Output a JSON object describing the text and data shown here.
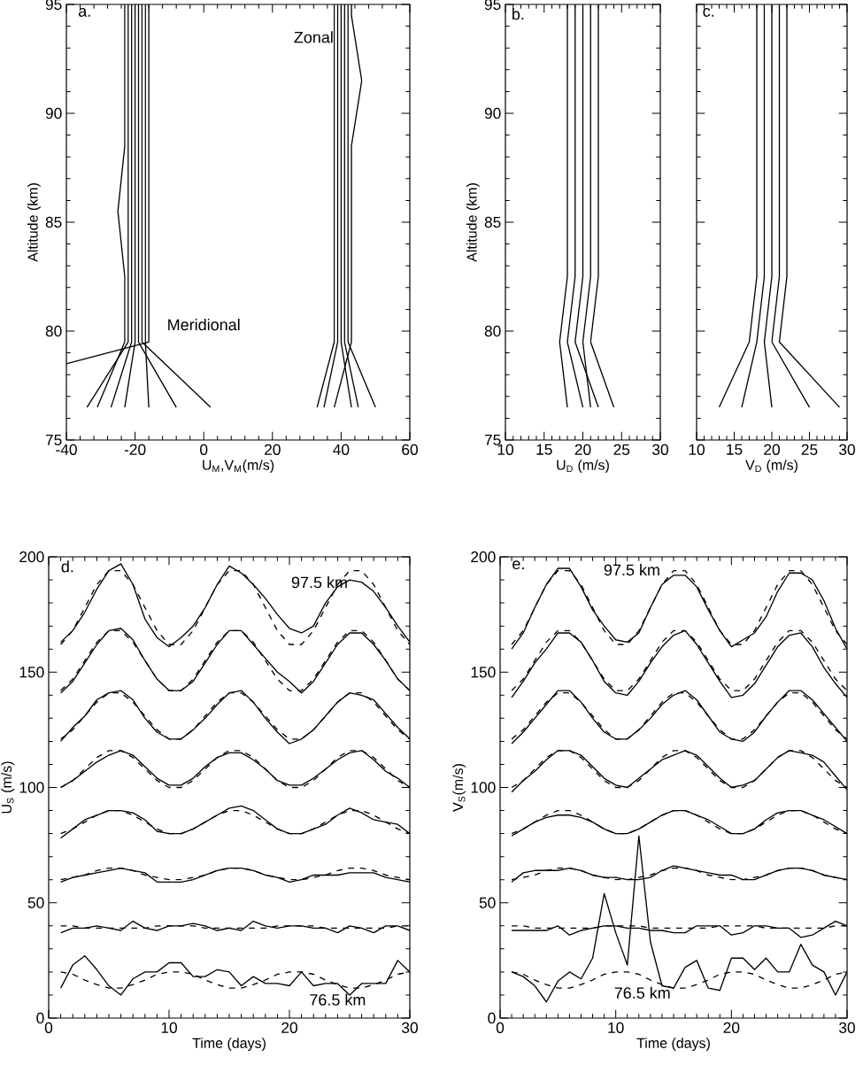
{
  "chart_data": [
    {
      "type": "line",
      "xlabel": "U$_{M}$,V$_{M}$(m/s)",
      "ylabel": "Altitude (km)",
      "xlim": [
        -40,
        60
      ],
      "ylim": [
        75,
        95
      ],
      "xticks": [
        -40,
        -20,
        0,
        20,
        40,
        60
      ],
      "yticks": [
        75,
        80,
        85,
        90,
        95
      ],
      "annotations": [
        "a.",
        "Zonal",
        "Meridional"
      ],
      "series": [
        {
          "color": "#000000",
          "x": [
            -34,
            -22,
            -22,
            -22,
            -22,
            -22,
            -22,
            -22
          ],
          "values": [
            76.5,
            79.5,
            82.5,
            85.5,
            88.5,
            91.5,
            94.5,
            95
          ]
        },
        {
          "color": "#000000",
          "x": [
            -27,
            -21,
            -21,
            -21,
            -21,
            -21,
            -21,
            -21
          ],
          "values": [
            76.5,
            79.5,
            82.5,
            85.5,
            88.5,
            91.5,
            94.5,
            95
          ]
        },
        {
          "color": "#000000",
          "x": [
            -23,
            -20,
            -20,
            -20,
            -20,
            -20,
            -20,
            -20
          ],
          "values": [
            76.5,
            79.5,
            82.5,
            85.5,
            88.5,
            91.5,
            94.5,
            95
          ]
        },
        {
          "color": "#000000",
          "x": [
            -8,
            -19,
            -19,
            -19,
            -19,
            -19,
            -19,
            -19
          ],
          "values": [
            76.5,
            79.5,
            82.5,
            85.5,
            88.5,
            91.5,
            94.5,
            95
          ]
        },
        {
          "color": "#000000",
          "x": [
            2,
            -18,
            -18,
            -18,
            -18,
            -18,
            -18,
            -18
          ],
          "values": [
            76.5,
            79.5,
            82.5,
            85.5,
            88.5,
            91.5,
            94.5,
            95
          ]
        },
        {
          "color": "#000000",
          "x": [
            -16,
            -17,
            -17,
            -17,
            -17,
            -17,
            -17,
            -17
          ],
          "values": [
            76.5,
            79.5,
            82.5,
            85.5,
            88.5,
            91.5,
            94.5,
            95
          ]
        },
        {
          "color": "#000000",
          "x": [
            -31,
            -23,
            -23,
            -25,
            -23,
            -23,
            -23,
            -23
          ],
          "values": [
            76.5,
            79.5,
            82.5,
            85.5,
            88.5,
            91.5,
            94.5,
            95
          ]
        },
        {
          "color": "#000000",
          "x": [
            -40,
            -16,
            -16,
            -16,
            -16,
            -16,
            -16,
            -16
          ],
          "values": [
            78.5,
            79.5,
            82.5,
            85.5,
            88.5,
            91.5,
            94.5,
            95
          ]
        },
        {
          "color": "#000000",
          "x": [
            33,
            38,
            38,
            38,
            38,
            38,
            38,
            38
          ],
          "values": [
            76.5,
            79.5,
            82.5,
            85.5,
            88.5,
            91.5,
            94.5,
            95
          ]
        },
        {
          "color": "#000000",
          "x": [
            35,
            39,
            39,
            39,
            39,
            39,
            39,
            39
          ],
          "values": [
            76.5,
            79.5,
            82.5,
            85.5,
            88.5,
            91.5,
            94.5,
            95
          ]
        },
        {
          "color": "#000000",
          "x": [
            43,
            40,
            40,
            40,
            40,
            40,
            40,
            40
          ],
          "values": [
            76.5,
            79.5,
            82.5,
            85.5,
            88.5,
            91.5,
            94.5,
            95
          ]
        },
        {
          "color": "#000000",
          "x": [
            45,
            41,
            41,
            41,
            41,
            41,
            41,
            41
          ],
          "values": [
            76.5,
            79.5,
            82.5,
            85.5,
            88.5,
            91.5,
            94.5,
            95
          ]
        },
        {
          "color": "#000000",
          "x": [
            50,
            42,
            42,
            42,
            42,
            42,
            42,
            42
          ],
          "values": [
            76.5,
            79.5,
            82.5,
            85.5,
            88.5,
            91.5,
            94.5,
            95
          ]
        },
        {
          "color": "#000000",
          "x": [
            38,
            43,
            43,
            43,
            43,
            46,
            43,
            43
          ],
          "values": [
            76.5,
            79.5,
            82.5,
            85.5,
            88.5,
            91.5,
            94.5,
            95
          ]
        }
      ]
    },
    {
      "type": "line",
      "xlabel": "U$_{D}$ (m/s)",
      "ylabel": "Altitude (km)",
      "xlim": [
        10,
        30
      ],
      "ylim": [
        75,
        95
      ],
      "xticks": [
        10,
        15,
        20,
        25,
        30
      ],
      "yticks": [
        75,
        80,
        85,
        90,
        95
      ],
      "annotations": [
        "b."
      ],
      "series": [
        {
          "color": "#000000",
          "x": [
            18,
            17,
            18,
            18,
            18,
            18,
            18,
            18
          ],
          "values": [
            76.5,
            79.5,
            82.5,
            85.5,
            88.5,
            91.5,
            94.5,
            95
          ]
        },
        {
          "color": "#000000",
          "x": [
            20,
            18,
            19,
            19,
            19,
            19,
            19,
            19
          ],
          "values": [
            76.5,
            79.5,
            82.5,
            85.5,
            88.5,
            91.5,
            94.5,
            95
          ]
        },
        {
          "color": "#000000",
          "x": [
            22,
            19,
            20,
            20,
            20,
            20,
            20,
            20
          ],
          "values": [
            76.5,
            79.5,
            82.5,
            85.5,
            88.5,
            91.5,
            94.5,
            95
          ]
        },
        {
          "color": "#000000",
          "x": [
            21,
            20,
            21,
            21,
            21,
            21,
            21,
            21
          ],
          "values": [
            76.5,
            79.5,
            82.5,
            85.5,
            88.5,
            91.5,
            94.5,
            95
          ]
        },
        {
          "color": "#000000",
          "x": [
            24,
            21,
            22,
            22,
            22,
            22,
            22,
            22
          ],
          "values": [
            76.5,
            79.5,
            82.5,
            85.5,
            88.5,
            91.5,
            94.5,
            95
          ]
        }
      ]
    },
    {
      "type": "line",
      "xlabel": "V$_{D}$ (m/s)",
      "xlim": [
        10,
        30
      ],
      "ylim": [
        75,
        95
      ],
      "xticks": [
        10,
        15,
        20,
        25,
        30
      ],
      "yticks": [
        75,
        80,
        85,
        90,
        95
      ],
      "tick_labels": "x",
      "annotations": [
        "c."
      ],
      "series": [
        {
          "color": "#000000",
          "x": [
            13,
            17,
            18,
            18,
            18,
            18,
            18,
            18
          ],
          "values": [
            76.5,
            79.5,
            82.5,
            85.5,
            88.5,
            91.5,
            94.5,
            95
          ]
        },
        {
          "color": "#000000",
          "x": [
            16,
            18,
            19,
            19,
            19,
            19,
            19,
            19
          ],
          "values": [
            76.5,
            79.5,
            82.5,
            85.5,
            88.5,
            91.5,
            94.5,
            95
          ]
        },
        {
          "color": "#000000",
          "x": [
            20,
            19,
            20,
            20,
            20,
            20,
            20,
            20
          ],
          "values": [
            76.5,
            79.5,
            82.5,
            85.5,
            88.5,
            91.5,
            94.5,
            95
          ]
        },
        {
          "color": "#000000",
          "x": [
            25,
            20,
            21,
            21,
            21,
            21,
            21,
            21
          ],
          "values": [
            76.5,
            79.5,
            82.5,
            85.5,
            88.5,
            91.5,
            94.5,
            95
          ]
        },
        {
          "color": "#000000",
          "x": [
            29,
            21,
            22,
            22,
            22,
            22,
            22,
            22
          ],
          "values": [
            76.5,
            79.5,
            82.5,
            85.5,
            88.5,
            91.5,
            94.5,
            95
          ]
        }
      ]
    },
    {
      "type": "line",
      "xlabel": "Time (days)",
      "ylabel": "U$_{S}$ (m/s)",
      "xlim": [
        0,
        30
      ],
      "ylim": [
        0,
        200
      ],
      "xticks": [
        0,
        10,
        20,
        30
      ],
      "yticks": [
        0,
        50,
        100,
        150,
        200
      ],
      "x": [
        1,
        2,
        3,
        4,
        5,
        6,
        7,
        8,
        9,
        10,
        11,
        12,
        13,
        14,
        15,
        16,
        17,
        18,
        19,
        20,
        21,
        22,
        23,
        24,
        25,
        26,
        27,
        28,
        29,
        30
      ],
      "annotations": [
        "d.",
        "97.5 km",
        "76.5 km"
      ],
      "series": [
        {
          "color": "#000000",
          "line_style": "solid",
          "values": [
            163,
            168,
            176,
            186,
            194,
            197,
            188,
            173,
            165,
            161,
            165,
            170,
            178,
            188,
            196,
            193,
            188,
            182,
            175,
            169,
            167,
            170,
            180,
            187,
            190,
            189,
            185,
            178,
            170,
            163
          ]
        },
        {
          "color": "#000000",
          "line_style": "solid",
          "values": [
            141,
            146,
            154,
            162,
            168,
            169,
            164,
            155,
            147,
            142,
            142,
            146,
            154,
            162,
            168,
            168,
            162,
            156,
            150,
            146,
            141,
            146,
            154,
            162,
            167,
            167,
            162,
            155,
            147,
            142
          ]
        },
        {
          "color": "#000000",
          "line_style": "solid",
          "values": [
            120,
            126,
            131,
            138,
            141,
            142,
            138,
            130,
            124,
            121,
            121,
            125,
            130,
            136,
            141,
            142,
            137,
            130,
            124,
            119,
            121,
            125,
            131,
            137,
            141,
            140,
            138,
            132,
            126,
            121
          ]
        },
        {
          "color": "#000000",
          "line_style": "solid",
          "values": [
            100,
            103,
            107,
            111,
            114,
            116,
            114,
            109,
            104,
            101,
            101,
            104,
            109,
            113,
            115,
            115,
            112,
            108,
            103,
            101,
            101,
            104,
            108,
            112,
            115,
            116,
            112,
            107,
            104,
            100
          ]
        },
        {
          "color": "#000000",
          "line_style": "solid",
          "values": [
            78,
            82,
            86,
            88,
            90,
            90,
            89,
            86,
            81,
            80,
            80,
            82,
            85,
            88,
            91,
            92,
            90,
            86,
            82,
            80,
            80,
            82,
            84,
            88,
            91,
            89,
            86,
            85,
            84,
            80
          ]
        },
        {
          "color": "#000000",
          "line_style": "solid",
          "values": [
            59,
            61,
            62,
            63,
            64,
            65,
            64,
            63,
            59,
            59,
            59,
            60,
            62,
            64,
            65,
            65,
            64,
            62,
            61,
            59,
            60,
            62,
            62,
            62,
            63,
            63,
            63,
            61,
            60,
            59
          ]
        },
        {
          "color": "#000000",
          "line_style": "solid",
          "values": [
            37,
            39,
            39,
            40,
            39,
            38,
            42,
            39,
            38,
            40,
            40,
            41,
            40,
            38,
            39,
            38,
            42,
            40,
            39,
            40,
            40,
            39,
            39,
            37,
            40,
            39,
            37,
            40,
            40,
            38
          ]
        },
        {
          "color": "#000000",
          "line_style": "solid",
          "values": [
            13,
            23,
            27,
            21,
            14,
            10,
            17,
            20,
            20,
            24,
            24,
            18,
            18,
            21,
            20,
            14,
            18,
            15,
            15,
            14,
            20,
            14,
            15,
            15,
            10,
            15,
            15,
            15,
            25,
            20
          ]
        },
        {
          "color": "#000000",
          "line_style": "dashed",
          "values": [
            162,
            168,
            178,
            188,
            194,
            194,
            188,
            178,
            168,
            162,
            162,
            168,
            178,
            188,
            194,
            194,
            188,
            178,
            168,
            162,
            162,
            168,
            178,
            188,
            194,
            194,
            188,
            178,
            168,
            162
          ]
        },
        {
          "color": "#000000",
          "line_style": "dashed",
          "values": [
            142,
            147,
            155,
            163,
            168,
            168,
            163,
            155,
            147,
            142,
            142,
            147,
            155,
            163,
            168,
            168,
            163,
            155,
            147,
            142,
            142,
            147,
            155,
            163,
            168,
            168,
            163,
            155,
            147,
            142
          ]
        },
        {
          "color": "#000000",
          "line_style": "dashed",
          "values": [
            121,
            125,
            131,
            137,
            141,
            141,
            137,
            131,
            125,
            121,
            121,
            125,
            131,
            137,
            141,
            141,
            137,
            131,
            125,
            121,
            121,
            125,
            131,
            137,
            141,
            141,
            137,
            131,
            125,
            121
          ]
        },
        {
          "color": "#000000",
          "line_style": "dashed",
          "values": [
            100,
            103,
            108,
            113,
            116,
            116,
            113,
            108,
            103,
            100,
            100,
            103,
            108,
            113,
            116,
            116,
            113,
            108,
            103,
            100,
            100,
            103,
            108,
            113,
            116,
            116,
            113,
            108,
            103,
            100
          ]
        },
        {
          "color": "#000000",
          "line_style": "dashed",
          "values": [
            80,
            82,
            85,
            88,
            90,
            90,
            88,
            85,
            82,
            80,
            80,
            82,
            85,
            88,
            90,
            90,
            88,
            85,
            82,
            80,
            80,
            82,
            85,
            88,
            90,
            90,
            88,
            85,
            82,
            80
          ]
        },
        {
          "color": "#000000",
          "line_style": "dashed",
          "values": [
            60,
            61,
            62,
            64,
            65,
            65,
            64,
            62,
            61,
            60,
            60,
            61,
            62,
            64,
            65,
            65,
            64,
            62,
            61,
            60,
            60,
            61,
            62,
            64,
            65,
            65,
            64,
            62,
            61,
            60
          ]
        },
        {
          "color": "#000000",
          "line_style": "dashed",
          "values": [
            40,
            40,
            39,
            39,
            39,
            39,
            39,
            39,
            40,
            40,
            40,
            40,
            39,
            39,
            39,
            39,
            39,
            39,
            40,
            40,
            40,
            40,
            39,
            39,
            39,
            39,
            39,
            39,
            40,
            40
          ]
        },
        {
          "color": "#000000",
          "line_style": "dashed",
          "values": [
            20,
            19,
            16.5,
            14.5,
            13,
            13,
            14.5,
            16.5,
            19,
            20,
            20,
            19,
            16.5,
            14.5,
            13,
            13,
            14.5,
            16.5,
            19,
            20,
            20,
            19,
            16.5,
            14.5,
            13,
            13,
            14.5,
            16.5,
            19,
            20
          ]
        }
      ]
    },
    {
      "type": "line",
      "xlabel": "Time (days)",
      "ylabel": "V$_{S}$(m/s)",
      "xlim": [
        0,
        30
      ],
      "ylim": [
        0,
        200
      ],
      "xticks": [
        0,
        10,
        20,
        30
      ],
      "yticks": [
        0,
        50,
        100,
        150,
        200
      ],
      "x": [
        1,
        2,
        3,
        4,
        5,
        6,
        7,
        8,
        9,
        10,
        11,
        12,
        13,
        14,
        15,
        16,
        17,
        18,
        19,
        20,
        21,
        22,
        23,
        24,
        25,
        26,
        27,
        28,
        29,
        30
      ],
      "annotations": [
        "e.",
        "97.5 km",
        "76.5 km"
      ],
      "series": [
        {
          "color": "#000000",
          "line_style": "solid",
          "values": [
            160,
            167,
            178,
            188,
            195,
            195,
            187,
            177,
            170,
            164,
            163,
            167,
            178,
            188,
            192,
            192,
            187,
            177,
            168,
            161,
            164,
            167,
            174,
            185,
            193,
            193,
            190,
            181,
            169,
            160
          ]
        },
        {
          "color": "#000000",
          "line_style": "solid",
          "values": [
            139,
            146,
            154,
            160,
            167,
            167,
            163,
            155,
            146,
            141,
            140,
            146,
            154,
            161,
            166,
            168,
            162,
            154,
            146,
            139,
            140,
            145,
            153,
            161,
            166,
            167,
            161,
            152,
            145,
            139
          ]
        },
        {
          "color": "#000000",
          "line_style": "solid",
          "values": [
            119,
            124,
            130,
            136,
            142,
            142,
            137,
            130,
            124,
            121,
            121,
            125,
            130,
            136,
            140,
            142,
            138,
            131,
            124,
            121,
            120,
            124,
            131,
            137,
            142,
            142,
            138,
            132,
            126,
            120
          ]
        },
        {
          "color": "#000000",
          "line_style": "solid",
          "values": [
            98,
            103,
            107,
            112,
            116,
            116,
            114,
            109,
            104,
            101,
            100,
            104,
            108,
            112,
            114,
            116,
            114,
            109,
            104,
            100,
            101,
            103,
            108,
            113,
            116,
            115,
            114,
            111,
            105,
            99
          ]
        },
        {
          "color": "#000000",
          "line_style": "solid",
          "values": [
            79,
            82,
            85,
            87,
            88,
            88,
            87,
            85,
            82,
            80,
            80,
            82,
            85,
            88,
            90,
            90,
            88,
            86,
            83,
            80,
            80,
            82,
            86,
            89,
            90,
            90,
            88,
            86,
            83,
            80
          ]
        },
        {
          "color": "#000000",
          "line_style": "solid",
          "values": [
            59,
            63,
            64,
            64,
            64,
            65,
            64,
            62,
            61,
            61,
            60,
            60,
            61,
            64,
            66,
            65,
            64,
            63,
            62,
            62,
            60,
            60,
            62,
            64,
            65,
            65,
            64,
            62,
            61,
            60
          ]
        },
        {
          "color": "#000000",
          "line_style": "solid",
          "values": [
            38,
            38,
            38,
            38,
            40,
            36,
            38,
            39,
            40,
            40,
            39,
            39,
            38,
            38,
            37,
            37,
            40,
            40,
            40,
            36,
            37,
            40,
            40,
            39,
            39,
            35,
            36,
            39,
            42,
            40
          ]
        },
        {
          "color": "#000000",
          "line_style": "solid",
          "values": [
            20,
            18,
            14,
            7,
            16,
            20,
            17,
            26,
            54,
            37,
            23,
            79,
            33,
            14,
            13,
            22,
            25,
            13,
            12,
            26,
            26,
            21,
            26,
            20,
            20,
            32,
            23,
            20,
            10,
            20
          ]
        },
        {
          "color": "#000000",
          "line_style": "dashed",
          "values": [
            162,
            168,
            178,
            188,
            194,
            194,
            188,
            178,
            168,
            162,
            162,
            168,
            178,
            188,
            194,
            194,
            188,
            178,
            168,
            162,
            162,
            168,
            178,
            188,
            194,
            194,
            188,
            178,
            168,
            162
          ]
        },
        {
          "color": "#000000",
          "line_style": "dashed",
          "values": [
            142,
            147,
            155,
            163,
            168,
            168,
            163,
            155,
            147,
            142,
            142,
            147,
            155,
            163,
            168,
            168,
            163,
            155,
            147,
            142,
            142,
            147,
            155,
            163,
            168,
            168,
            163,
            155,
            147,
            142
          ]
        },
        {
          "color": "#000000",
          "line_style": "dashed",
          "values": [
            121,
            125,
            131,
            137,
            141,
            141,
            137,
            131,
            125,
            121,
            121,
            125,
            131,
            137,
            141,
            141,
            137,
            131,
            125,
            121,
            121,
            125,
            131,
            137,
            141,
            141,
            137,
            131,
            125,
            121
          ]
        },
        {
          "color": "#000000",
          "line_style": "dashed",
          "values": [
            100,
            103,
            108,
            113,
            116,
            116,
            113,
            108,
            103,
            100,
            100,
            103,
            108,
            113,
            116,
            116,
            113,
            108,
            103,
            100,
            100,
            103,
            108,
            113,
            116,
            116,
            113,
            108,
            103,
            100
          ]
        },
        {
          "color": "#000000",
          "line_style": "dashed",
          "values": [
            80,
            82,
            85,
            88,
            90,
            90,
            88,
            85,
            82,
            80,
            80,
            82,
            85,
            88,
            90,
            90,
            88,
            85,
            82,
            80,
            80,
            82,
            85,
            88,
            90,
            90,
            88,
            85,
            82,
            80
          ]
        },
        {
          "color": "#000000",
          "line_style": "dashed",
          "values": [
            60,
            61,
            62,
            64,
            65,
            65,
            64,
            62,
            61,
            60,
            60,
            61,
            62,
            64,
            65,
            65,
            64,
            62,
            61,
            60,
            60,
            61,
            62,
            64,
            65,
            65,
            64,
            62,
            61,
            60
          ]
        },
        {
          "color": "#000000",
          "line_style": "dashed",
          "values": [
            40,
            40,
            39,
            39,
            39,
            39,
            39,
            39,
            40,
            40,
            40,
            40,
            39,
            39,
            39,
            39,
            39,
            39,
            40,
            40,
            40,
            40,
            39,
            39,
            39,
            39,
            39,
            39,
            40,
            40
          ]
        },
        {
          "color": "#000000",
          "line_style": "dashed",
          "values": [
            20,
            19,
            16.5,
            14.5,
            13,
            13,
            14.5,
            16.5,
            19,
            20,
            20,
            19,
            16.5,
            14.5,
            13,
            13,
            14.5,
            16.5,
            19,
            20,
            20,
            19,
            16.5,
            14.5,
            13,
            13,
            14.5,
            16.5,
            19,
            20
          ]
        }
      ]
    }
  ]
}
